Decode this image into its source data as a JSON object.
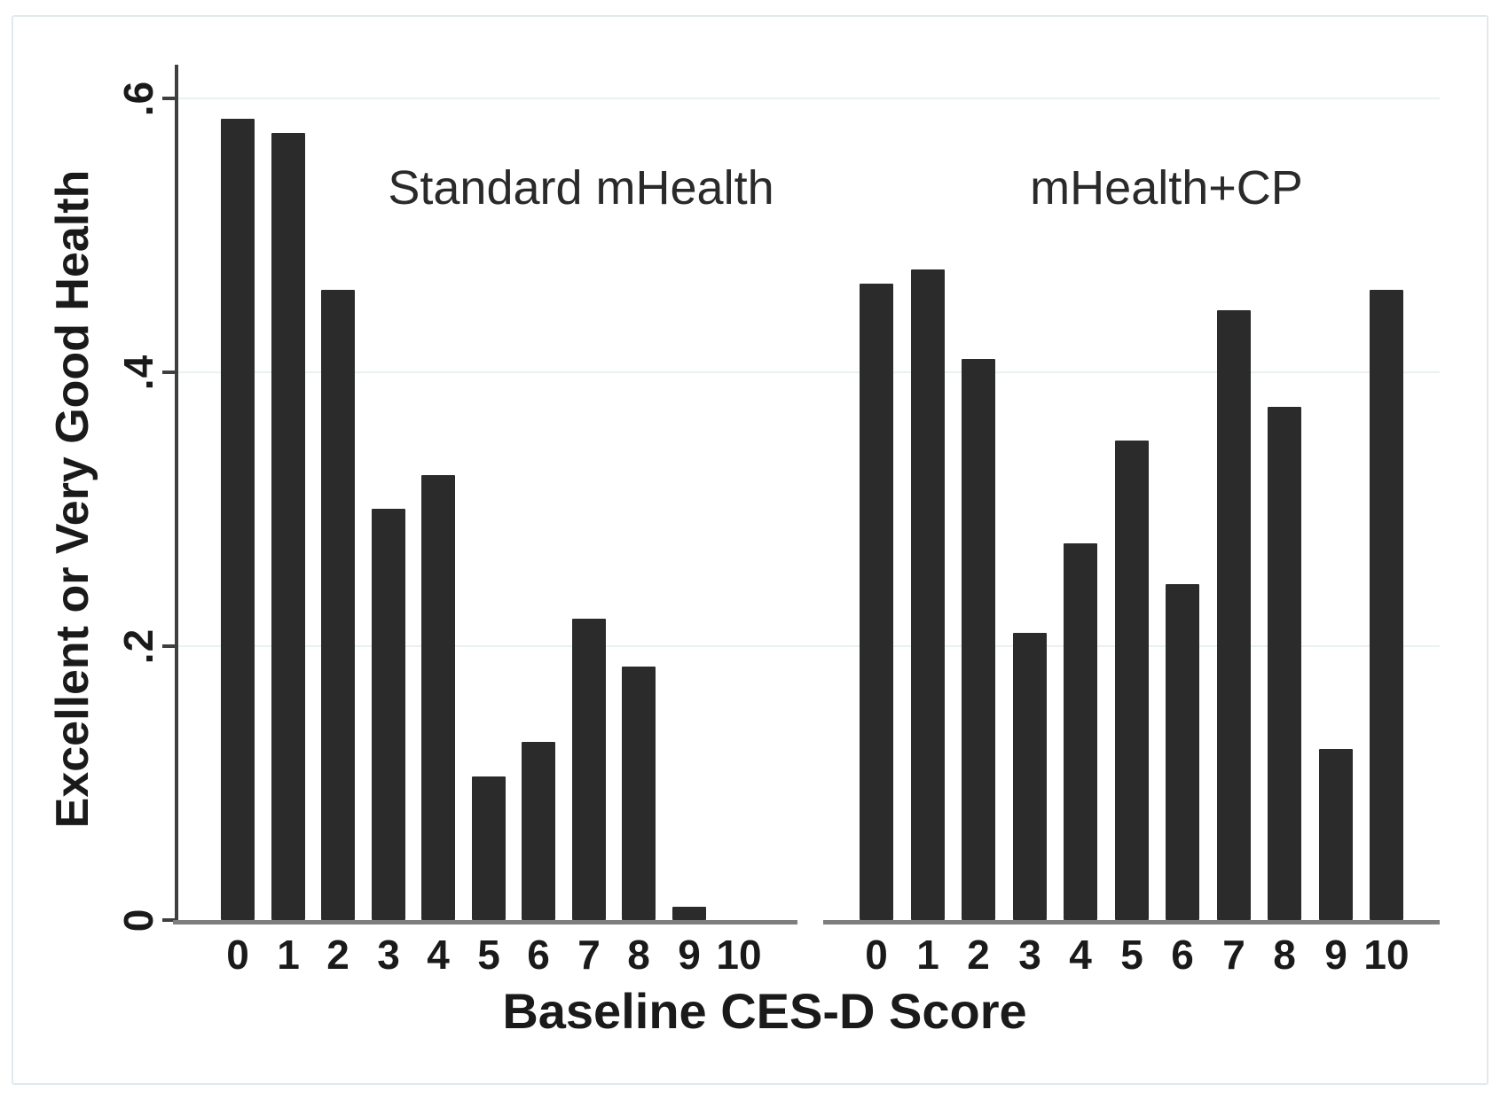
{
  "chart_data": {
    "type": "bar",
    "xlabel": "Baseline CES-D Score",
    "ylabel": "Excellent or Very Good Health",
    "ylim": [
      0,
      0.6
    ],
    "grid": "horizontal gridlines at 0.2, 0.4, 0.6 (very light)",
    "legend_position": "none (panel titles shown as in-plot annotations)",
    "y_ticks": [
      {
        "label": ".6",
        "value": 0.6
      },
      {
        "label": ".4",
        "value": 0.4
      },
      {
        "label": ".2",
        "value": 0.2
      },
      {
        "label": "0",
        "value": 0.0
      }
    ],
    "categories": [
      "0",
      "1",
      "2",
      "3",
      "4",
      "5",
      "6",
      "7",
      "8",
      "9",
      "10"
    ],
    "panels": [
      {
        "name": "Standard mHealth",
        "values": [
          0.585,
          0.575,
          0.46,
          0.3,
          0.325,
          0.105,
          0.13,
          0.22,
          0.185,
          0.01,
          0.0
        ]
      },
      {
        "name": "mHealth+CP",
        "values": [
          0.465,
          0.475,
          0.41,
          0.21,
          0.275,
          0.35,
          0.245,
          0.445,
          0.375,
          0.125,
          0.46
        ]
      }
    ]
  },
  "colors": {
    "bar": "#2b2b2b",
    "gridline": "#e9f2f1",
    "baseline": "#7e7e7e",
    "axis": "#3f3f3f",
    "tick_text": "#1a1a1a",
    "title_text": "#2a2a2a",
    "frame": "#e2e9ec",
    "background": "#ffffff"
  }
}
